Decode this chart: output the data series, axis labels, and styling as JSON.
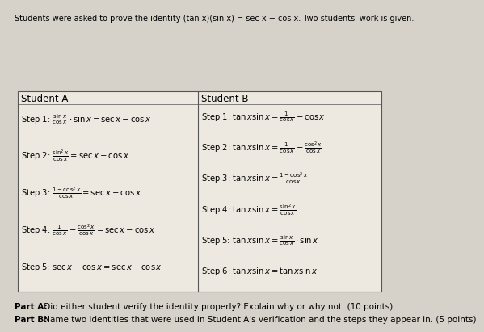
{
  "title": "Students were asked to prove the identity (tan x)(sin x) = sec x − cos x. Two students' work is given.",
  "bg_color": "#d6d2ca",
  "table_bg": "#ede9e0",
  "student_a_header": "Student A",
  "student_b_header": "Student B",
  "part_a_bold": "Part A:",
  "part_a_rest": " Did either student verify the identity properly? Explain why or why not. (10 points)",
  "part_b_bold": "Part B:",
  "part_b_rest": " Name two identities that were used in Student A's verification and the steps they appear in. (5 points)"
}
